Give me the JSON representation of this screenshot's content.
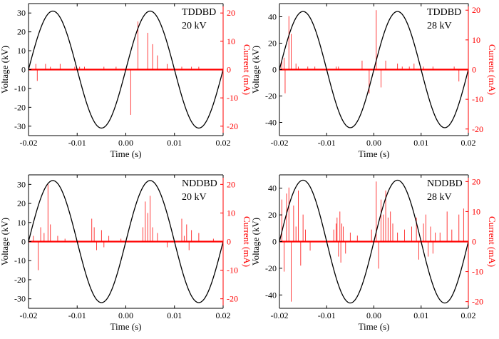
{
  "figure": {
    "colors": {
      "voltage": "#000000",
      "current": "#ff0000",
      "axis": "#000000"
    }
  },
  "chart_data": [
    {
      "type": "line",
      "id": "tddbd-20kv",
      "annotation": [
        "TDDBD",
        "20 kV"
      ],
      "xlabel": "Time (s)",
      "ylabel_left": "Voltage (kV)",
      "ylabel_right": "Current (mA)",
      "xlim": [
        -0.02,
        0.02
      ],
      "ylim_left": [
        -35,
        35
      ],
      "ylim_right": [
        -23.33,
        23.33
      ],
      "xticks": [
        -0.02,
        -0.01,
        0.0,
        0.01,
        0.02
      ],
      "xticklabels": [
        "-0.02",
        "-0.01",
        "0.00",
        "0.01",
        "0.02"
      ],
      "yticks_left": [
        -30,
        -20,
        -10,
        0,
        10,
        20,
        30
      ],
      "yticks_right": [
        -20,
        -10,
        0,
        10,
        20
      ],
      "series": [
        {
          "axis": "left",
          "waveform": "sine",
          "amplitude": 31,
          "frequency_hz": 50,
          "peak_time": -0.015
        },
        {
          "axis": "right",
          "waveform": "baseline-with-spikes",
          "spikes": [
            [
              -0.0185,
              2
            ],
            [
              -0.0182,
              -4
            ],
            [
              -0.0165,
              2
            ],
            [
              -0.0155,
              1
            ],
            [
              -0.0135,
              2
            ],
            [
              -0.0105,
              1
            ],
            [
              -0.0095,
              1
            ],
            [
              -0.0085,
              1
            ],
            [
              -0.0045,
              1
            ],
            [
              -0.002,
              1
            ],
            [
              0.001,
              -16
            ],
            [
              0.0025,
              17
            ],
            [
              0.0045,
              13
            ],
            [
              0.0055,
              9
            ],
            [
              0.0065,
              5
            ],
            [
              0.0085,
              2
            ],
            [
              0.0115,
              1
            ],
            [
              0.0135,
              1
            ],
            [
              0.015,
              1
            ]
          ]
        }
      ]
    },
    {
      "type": "line",
      "id": "tddbd-28kv",
      "annotation": [
        "TDDBD",
        "28 kV"
      ],
      "xlabel": "Time (s)",
      "ylabel_left": "Voltage (kV)",
      "ylabel_right": "Current (mA)",
      "xlim": [
        -0.02,
        0.02
      ],
      "ylim_left": [
        -50,
        50
      ],
      "ylim_right": [
        -22.22,
        22.22
      ],
      "xticks": [
        -0.02,
        -0.01,
        0.0,
        0.01,
        0.02
      ],
      "xticklabels": [
        "-0.02",
        "-0.01",
        "0.00",
        "0.01",
        "0.02"
      ],
      "yticks_left": [
        -40,
        -20,
        0,
        20,
        40
      ],
      "yticks_right": [
        -20,
        -10,
        0,
        10,
        20
      ],
      "series": [
        {
          "axis": "left",
          "waveform": "sine",
          "amplitude": 44,
          "frequency_hz": 50,
          "peak_time": -0.015
        },
        {
          "axis": "right",
          "waveform": "baseline-with-spikes",
          "spikes": [
            [
              -0.0195,
              3
            ],
            [
              -0.019,
              4
            ],
            [
              -0.0188,
              -8
            ],
            [
              -0.018,
              18
            ],
            [
              -0.0175,
              12
            ],
            [
              -0.0165,
              2
            ],
            [
              -0.016,
              1
            ],
            [
              -0.014,
              1
            ],
            [
              -0.0125,
              1
            ],
            [
              -0.008,
              1
            ],
            [
              -0.0075,
              1
            ],
            [
              -0.0025,
              3
            ],
            [
              -0.001,
              -8
            ],
            [
              0.0005,
              20
            ],
            [
              0.0015,
              -6
            ],
            [
              0.0025,
              3
            ],
            [
              0.005,
              2
            ],
            [
              0.006,
              1
            ],
            [
              0.0075,
              1
            ],
            [
              0.0085,
              2
            ],
            [
              0.0105,
              1
            ],
            [
              0.0125,
              1
            ],
            [
              0.017,
              1
            ],
            [
              0.018,
              -4
            ]
          ]
        }
      ]
    },
    {
      "type": "line",
      "id": "nddbd-20kv",
      "annotation": [
        "NDDBD",
        "20 kV"
      ],
      "xlabel": "Time (s)",
      "ylabel_left": "Voltage (kV)",
      "ylabel_right": "Current (mA)",
      "xlim": [
        -0.02,
        0.02
      ],
      "ylim_left": [
        -35,
        35
      ],
      "ylim_right": [
        -23.33,
        23.33
      ],
      "xticks": [
        -0.02,
        -0.01,
        0.0,
        0.01,
        0.02
      ],
      "xticklabels": [
        "-0.02",
        "-0.01",
        "0.00",
        "0.01",
        "0.02"
      ],
      "yticks_left": [
        -30,
        -20,
        -10,
        0,
        10,
        20,
        30
      ],
      "yticks_right": [
        -20,
        -10,
        0,
        10,
        20
      ],
      "series": [
        {
          "axis": "left",
          "waveform": "sine",
          "amplitude": 32,
          "frequency_hz": 50,
          "peak_time": -0.015
        },
        {
          "axis": "right",
          "waveform": "baseline-with-spikes",
          "spikes": [
            [
              -0.019,
              2
            ],
            [
              -0.018,
              -10
            ],
            [
              -0.0175,
              5
            ],
            [
              -0.0168,
              3
            ],
            [
              -0.016,
              20
            ],
            [
              -0.0155,
              6
            ],
            [
              -0.014,
              2
            ],
            [
              -0.0125,
              1
            ],
            [
              -0.007,
              8
            ],
            [
              -0.0065,
              5
            ],
            [
              -0.006,
              -3
            ],
            [
              -0.005,
              4
            ],
            [
              -0.0045,
              -2
            ],
            [
              -0.0035,
              2
            ],
            [
              -0.001,
              1
            ],
            [
              0.0035,
              5
            ],
            [
              0.004,
              14
            ],
            [
              0.0045,
              10
            ],
            [
              0.005,
              16
            ],
            [
              0.0055,
              5
            ],
            [
              0.0065,
              3
            ],
            [
              0.0085,
              -2
            ],
            [
              0.0115,
              8
            ],
            [
              0.012,
              2
            ],
            [
              0.0125,
              6
            ],
            [
              0.013,
              -3
            ],
            [
              0.0135,
              4
            ],
            [
              0.015,
              3
            ],
            [
              0.018,
              1
            ]
          ]
        }
      ]
    },
    {
      "type": "line",
      "id": "nddbd-28kv",
      "annotation": [
        "NDDBD",
        "28 kV"
      ],
      "xlabel": "Time (s)",
      "ylabel_left": "Voltage (kV)",
      "ylabel_right": "Current (mA)",
      "xlim": [
        -0.02,
        0.02
      ],
      "ylim_left": [
        -50,
        50
      ],
      "ylim_right": [
        -22.22,
        22.22
      ],
      "xticks": [
        -0.02,
        -0.01,
        0.0,
        0.01,
        0.02
      ],
      "xticklabels": [
        "-0.02",
        "-0.01",
        "0.00",
        "0.01",
        "0.02"
      ],
      "yticks_left": [
        -40,
        -20,
        0,
        20,
        40
      ],
      "yticks_right": [
        -20,
        -10,
        0,
        10,
        20
      ],
      "series": [
        {
          "axis": "left",
          "waveform": "sine",
          "amplitude": 46,
          "frequency_hz": 50,
          "peak_time": -0.015
        },
        {
          "axis": "right",
          "waveform": "baseline-with-spikes",
          "spikes": [
            [
              -0.0195,
              14
            ],
            [
              -0.019,
              -10
            ],
            [
              -0.0185,
              16
            ],
            [
              -0.018,
              18
            ],
            [
              -0.0175,
              -20
            ],
            [
              -0.017,
              12
            ],
            [
              -0.0165,
              5
            ],
            [
              -0.016,
              17
            ],
            [
              -0.0155,
              -8
            ],
            [
              -0.015,
              9
            ],
            [
              -0.0145,
              4
            ],
            [
              -0.0135,
              -3
            ],
            [
              -0.0085,
              4
            ],
            [
              -0.008,
              6
            ],
            [
              -0.0078,
              8
            ],
            [
              -0.0075,
              -5
            ],
            [
              -0.0072,
              10
            ],
            [
              -0.007,
              -7
            ],
            [
              -0.0068,
              6
            ],
            [
              -0.0065,
              5
            ],
            [
              -0.006,
              -4
            ],
            [
              -0.005,
              3
            ],
            [
              -0.0035,
              2
            ],
            [
              -0.0005,
              4
            ],
            [
              0.0005,
              20
            ],
            [
              0.001,
              -9
            ],
            [
              0.0015,
              14
            ],
            [
              0.002,
              9
            ],
            [
              0.0025,
              17
            ],
            [
              0.003,
              8
            ],
            [
              0.0035,
              10
            ],
            [
              0.004,
              6
            ],
            [
              0.005,
              3
            ],
            [
              0.0065,
              4
            ],
            [
              0.008,
              5
            ],
            [
              0.009,
              8
            ],
            [
              0.0095,
              -6
            ],
            [
              0.0105,
              6
            ],
            [
              0.011,
              9
            ],
            [
              0.0115,
              -5
            ],
            [
              0.012,
              5
            ],
            [
              0.0125,
              -4
            ],
            [
              0.013,
              3
            ],
            [
              0.014,
              3
            ],
            [
              0.0155,
              10
            ],
            [
              0.0165,
              4
            ],
            [
              0.018,
              9
            ],
            [
              0.019,
              11
            ]
          ]
        }
      ]
    }
  ]
}
